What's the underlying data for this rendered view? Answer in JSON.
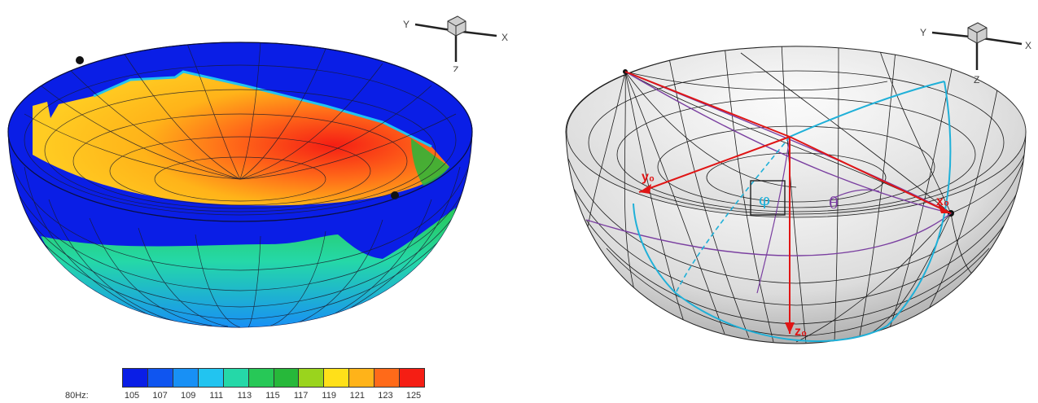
{
  "left": {
    "axes": {
      "y": "Y",
      "x": "X",
      "z": "Z"
    }
  },
  "right": {
    "axes": {
      "y": "Y",
      "x": "X",
      "z": "Z"
    },
    "vectors": {
      "y0": "y₀",
      "x0": "x₀",
      "z0": "z₀"
    },
    "angles": {
      "phi": "φ",
      "theta": "θ"
    }
  },
  "colorbar": {
    "prefix": "80Hz:",
    "ticks": [
      "105",
      "107",
      "109",
      "111",
      "113",
      "115",
      "117",
      "119",
      "121",
      "123",
      "125"
    ],
    "colors": [
      "#0a1ee6",
      "#0f55f0",
      "#1890f5",
      "#22c4f0",
      "#25d8a8",
      "#27c857",
      "#27b83a",
      "#9ad41d",
      "#ffe019",
      "#ffb319",
      "#ff6a19",
      "#f51e14"
    ]
  }
}
